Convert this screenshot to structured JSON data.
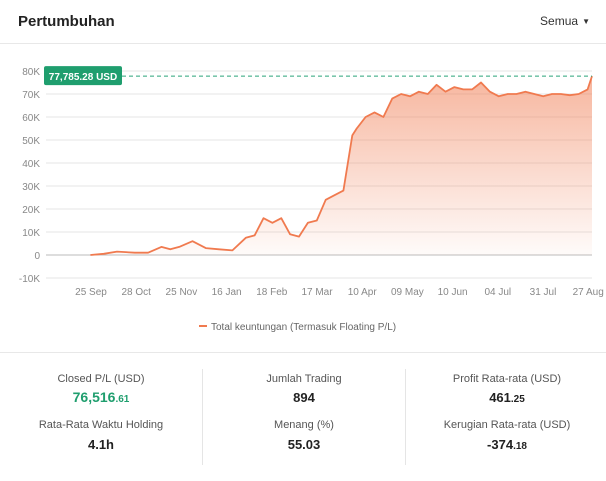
{
  "header": {
    "title": "Pertumbuhan",
    "filter_label": "Semua"
  },
  "chart_data": {
    "type": "area",
    "y_ticks": [
      "80K",
      "70K",
      "60K",
      "50K",
      "40K",
      "30K",
      "20K",
      "10K",
      "0",
      "-10K"
    ],
    "x_ticks": [
      "25 Sep",
      "28 Oct",
      "25 Nov",
      "16 Jan",
      "18 Feb",
      "17 Mar",
      "10 Apr",
      "09 May",
      "10 Jun",
      "04 Jul",
      "31 Jul",
      "27 Aug"
    ],
    "ylim": [
      -10000,
      80000
    ],
    "series": [
      {
        "name": "Total keuntungan (Termasuk Floating P/L)",
        "color": "#f07a4f",
        "x_index": [
          0,
          0.3,
          0.6,
          1.0,
          1.3,
          1.6,
          1.8,
          2.0,
          2.3,
          2.6,
          2.9,
          3.2,
          3.5,
          3.7,
          3.9,
          4.1,
          4.3,
          4.5,
          4.7,
          4.9,
          5.1,
          5.3,
          5.5,
          5.7,
          5.9,
          6.0,
          6.2,
          6.4,
          6.6,
          6.8,
          7.0,
          7.2,
          7.4,
          7.6,
          7.8,
          8.0,
          8.2,
          8.4,
          8.6,
          8.8,
          9.0,
          9.2,
          9.4,
          9.6,
          9.8,
          10.0,
          10.2,
          10.4,
          10.6,
          10.8,
          11.0,
          11.2,
          11.3
        ],
        "values": [
          0,
          500,
          1500,
          1000,
          1000,
          3500,
          2500,
          3500,
          6000,
          3000,
          2500,
          2000,
          7500,
          8500,
          16000,
          14000,
          16000,
          9000,
          8000,
          14000,
          15000,
          24000,
          26000,
          28000,
          52000,
          55000,
          60000,
          62000,
          60000,
          68000,
          70000,
          69000,
          71000,
          70000,
          74000,
          71000,
          73000,
          72000,
          72000,
          75000,
          71000,
          69000,
          70000,
          70000,
          71000,
          70000,
          69000,
          70000,
          70000,
          69500,
          70000,
          72000,
          77785.28
        ]
      }
    ],
    "max_label": "77,785.28 USD",
    "max_value": 77785.28,
    "legend_position": "bottom",
    "grid": true
  },
  "stats": {
    "closed_pl": {
      "label": "Closed P/L (USD)",
      "int": "76,516",
      "dec": ".61"
    },
    "avg_holding": {
      "label": "Rata-Rata Waktu Holding",
      "value": "4.1h"
    },
    "trades": {
      "label": "Jumlah Trading",
      "value": "894"
    },
    "win": {
      "label": "Menang (%)",
      "value": "55.03"
    },
    "avg_profit": {
      "label": "Profit Rata-rata (USD)",
      "int": "461",
      "dec": ".25"
    },
    "avg_loss": {
      "label": "Kerugian Rata-rata (USD)",
      "int": "-374",
      "dec": ".18"
    }
  },
  "colors": {
    "accent": "#f07a4f",
    "green": "#1f9e6e"
  }
}
